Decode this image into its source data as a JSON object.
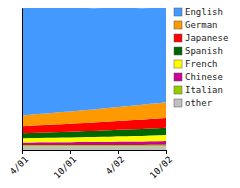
{
  "chart_data": {
    "type": "area",
    "stacked": true,
    "categories": [
      "4/01",
      null,
      null,
      null,
      null,
      null,
      "10/01",
      null,
      null,
      null,
      null,
      null,
      "4/02",
      null,
      null,
      null,
      null,
      null,
      "10/02"
    ],
    "series": [
      {
        "name": "other",
        "color": "#c0c0c0",
        "values": [
          2.5,
          2.5,
          2.5,
          2.5,
          2.5,
          2.5,
          2.5,
          2.5,
          2.5,
          2.5,
          2.5,
          2.5,
          2.5,
          2.5,
          2.5,
          2.5,
          2.5,
          2.5,
          2.5
        ]
      },
      {
        "name": "Italian",
        "color": "#99cc00",
        "values": [
          1.0,
          1.0,
          1.0,
          1.0,
          1.0,
          1.0,
          1.0,
          1.0,
          1.0,
          1.0,
          1.0,
          1.0,
          1.1,
          1.1,
          1.1,
          1.1,
          1.2,
          1.2,
          1.2
        ]
      },
      {
        "name": "Chinese",
        "color": "#cc0099",
        "values": [
          1.8,
          1.8,
          1.9,
          1.9,
          2.0,
          2.0,
          2.0,
          2.1,
          2.1,
          2.1,
          2.2,
          2.2,
          2.3,
          2.3,
          2.4,
          2.4,
          2.5,
          2.5,
          2.6
        ]
      },
      {
        "name": "French",
        "color": "#ffff00",
        "values": [
          3.0,
          3.1,
          3.1,
          3.2,
          3.2,
          3.3,
          3.3,
          3.4,
          3.5,
          3.5,
          3.6,
          3.7,
          3.7,
          3.8,
          3.9,
          3.9,
          4.0,
          4.1,
          4.2
        ]
      },
      {
        "name": "Spanish",
        "color": "#006600",
        "values": [
          3.5,
          3.6,
          3.7,
          3.7,
          3.8,
          3.9,
          4.0,
          4.1,
          4.2,
          4.3,
          4.4,
          4.5,
          4.6,
          4.7,
          4.8,
          4.9,
          5.0,
          5.1,
          5.2
        ]
      },
      {
        "name": "Japanese",
        "color": "#ff0000",
        "values": [
          5.0,
          5.1,
          5.2,
          5.3,
          5.4,
          5.5,
          5.6,
          5.7,
          5.8,
          5.9,
          6.0,
          6.1,
          6.2,
          6.3,
          6.4,
          6.5,
          6.6,
          6.7,
          6.8
        ]
      },
      {
        "name": "German",
        "color": "#ff9900",
        "values": [
          7.5,
          7.7,
          7.9,
          8.1,
          8.3,
          8.5,
          8.7,
          8.9,
          9.1,
          9.3,
          9.5,
          9.7,
          9.9,
          10.1,
          10.3,
          10.5,
          10.7,
          10.9,
          11.1
        ]
      },
      {
        "name": "English",
        "color": "#4499ff",
        "values": [
          75.7,
          75.2,
          74.7,
          74.3,
          73.8,
          73.3,
          72.9,
          72.3,
          71.8,
          71.3,
          70.8,
          70.3,
          69.7,
          69.2,
          68.6,
          68.1,
          67.5,
          67.0,
          66.4
        ]
      }
    ],
    "ylim": [
      0,
      100
    ],
    "tick_labels": "x",
    "grid": false,
    "legend": "right"
  }
}
